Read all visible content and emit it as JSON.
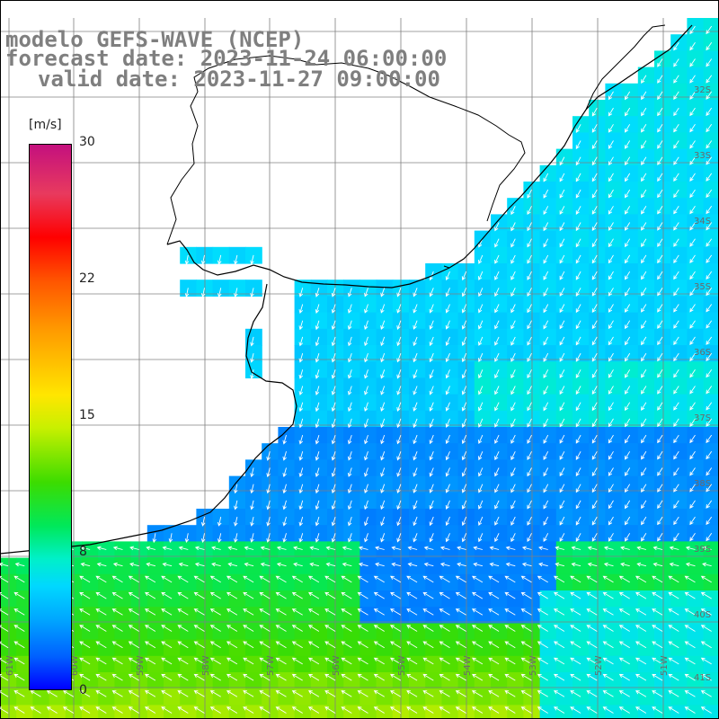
{
  "title": {
    "line1": "modelo GEFS-WAVE (NCEP)",
    "line2": "forecast date: 2023-11-24 06:00:00",
    "line3": "valid date: 2023-11-27 09:00:00"
  },
  "colorbar": {
    "unit": "[m/s]",
    "ticks": [
      "30",
      "22",
      "15",
      "8",
      "0"
    ],
    "tick_values": [
      30,
      22,
      15,
      8,
      0
    ],
    "colors": [
      "#0000ff",
      "#0060ff",
      "#00a8ff",
      "#00d8ff",
      "#00f0c8",
      "#00e85a",
      "#3cdc00",
      "#c8f000",
      "#ffe600",
      "#ff9a00",
      "#ff5500",
      "#ff0000",
      "#c4107e"
    ]
  },
  "map": {
    "land_color": "#ffffff",
    "grid_color": "#808080",
    "coast_color": "#000000",
    "arrow_color": "#ffffff",
    "lat_labels": [
      "32S",
      "33S",
      "34S",
      "35S",
      "36S",
      "37S",
      "38S",
      "39S",
      "40S",
      "41S"
    ],
    "lon_labels": [
      "61W",
      "60W",
      "59W",
      "58W",
      "57W",
      "56W",
      "55W",
      "54W",
      "53W",
      "52W",
      "51W"
    ]
  }
}
